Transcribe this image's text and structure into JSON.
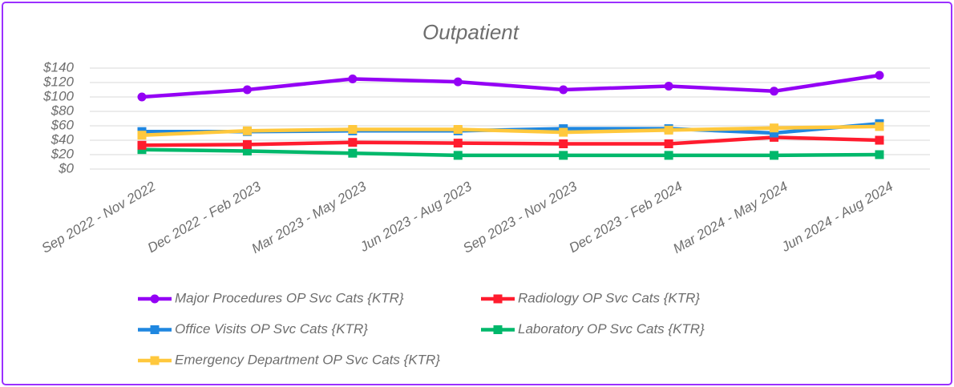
{
  "chart_data": {
    "type": "line",
    "title": "Outpatient",
    "categories": [
      "Sep 2022 - Nov 2022",
      "Dec 2022 - Feb 2023",
      "Mar 2023 - May 2023",
      "Jun 2023 - Aug 2023",
      "Sep 2023 - Nov 2023",
      "Dec 2023 - Feb 2024",
      "Mar 2024 - May 2024",
      "Jun 2024 - Aug 2024"
    ],
    "series": [
      {
        "name": "Major Procedures OP Svc Cats {KTR}",
        "color": "#9400f5",
        "marker": "circle",
        "values": [
          100,
          110,
          125,
          121,
          110,
          115,
          108,
          130
        ]
      },
      {
        "name": "Radiology OP Svc Cats {KTR}",
        "color": "#ff1c2e",
        "marker": "square",
        "values": [
          33,
          34,
          37,
          36,
          35,
          35,
          44,
          40
        ]
      },
      {
        "name": "Office Visits OP Svc Cats {KTR}",
        "color": "#1f87e0",
        "marker": "square",
        "values": [
          52,
          52,
          53,
          53,
          56,
          56,
          50,
          63
        ]
      },
      {
        "name": "Laboratory OP Svc Cats {KTR}",
        "color": "#00b86b",
        "marker": "square",
        "values": [
          27,
          25,
          22,
          19,
          19,
          19,
          19,
          20
        ]
      },
      {
        "name": "Emergency Department OP Svc Cats {KTR}",
        "color": "#ffc83d",
        "marker": "square",
        "values": [
          47,
          53,
          55,
          55,
          51,
          54,
          57,
          59
        ]
      }
    ],
    "ylim": [
      0,
      140
    ],
    "yticks": [
      {
        "value": 0,
        "label": "$0"
      },
      {
        "value": 20,
        "label": "$20"
      },
      {
        "value": 40,
        "label": "$40"
      },
      {
        "value": 60,
        "label": "$60"
      },
      {
        "value": 80,
        "label": "$80"
      },
      {
        "value": 100,
        "label": "$100"
      },
      {
        "value": 120,
        "label": "$120"
      },
      {
        "value": 140,
        "label": "$140"
      }
    ],
    "grid": true,
    "legend": "bottom"
  }
}
